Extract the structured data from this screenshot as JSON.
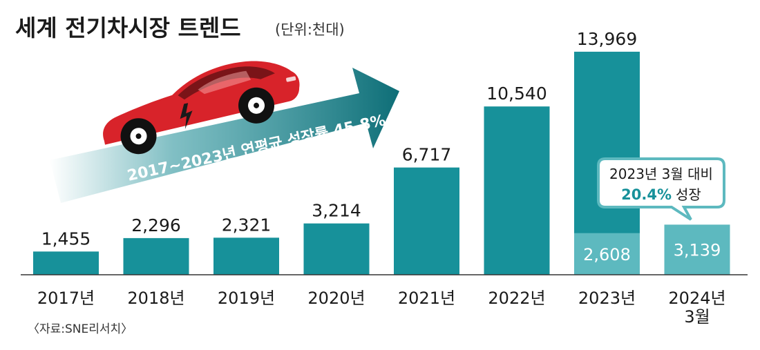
{
  "chart_data": {
    "type": "bar",
    "title": "세계 전기차시장 트렌드",
    "unit": "(단위:천대)",
    "categories": [
      "2017년",
      "2018년",
      "2019년",
      "2020년",
      "2021년",
      "2022년",
      "2023년",
      "2024년 3월"
    ],
    "values": [
      1455,
      2296,
      2321,
      3214,
      6717,
      10540,
      13969,
      3139
    ],
    "value_labels": [
      "1,455",
      "2,296",
      "2,321",
      "3,214",
      "6,717",
      "10,540",
      "13,969",
      "3,139"
    ],
    "sub_value": {
      "category": "2023년",
      "value": 2608,
      "label": "2,608"
    },
    "ylim": [
      0,
      14700
    ],
    "grid": false,
    "colors": {
      "bar": "#17919a",
      "bar_light": "#5db9bf",
      "accent": "#17919a",
      "car": "#d8232a",
      "text": "#1a1a1a"
    }
  },
  "annotations": {
    "arrow_text": "2017~2023년 연평균 성장률 45.8%",
    "bubble_line1": "2023년 3월 대비",
    "bubble_pct": "20.4%",
    "bubble_suffix": "성장"
  },
  "source": "〈자료:SNE리서치〉",
  "icons": {
    "car": "electric-car-icon",
    "bolt": "lightning-bolt-icon"
  }
}
